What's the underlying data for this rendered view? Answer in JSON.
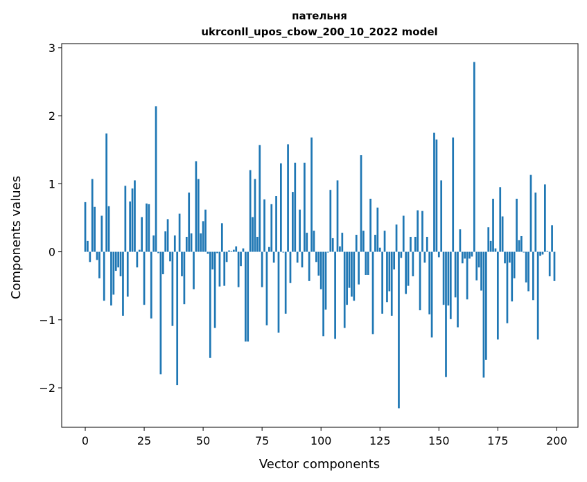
{
  "chart_data": {
    "type": "bar",
    "title": "пательня",
    "subtitle": "ukrconll_upos_cbow_200_10_2022 model",
    "xlabel": "Vector components",
    "ylabel": "Components values",
    "xlim": [
      -10,
      209
    ],
    "ylim": [
      -2.58,
      3.06
    ],
    "xticks": [
      0,
      25,
      50,
      75,
      100,
      125,
      150,
      175,
      200
    ],
    "xtick_labels": [
      "0",
      "25",
      "50",
      "75",
      "100",
      "125",
      "150",
      "175",
      "200"
    ],
    "yticks": [
      -2,
      -1,
      0,
      1,
      2,
      3
    ],
    "ytick_labels": [
      "−2",
      "−1",
      "0",
      "1",
      "2",
      "3"
    ],
    "bar_color": "#1f77b4",
    "grid": false,
    "legend": "none",
    "x": [
      0,
      1,
      2,
      3,
      4,
      5,
      6,
      7,
      8,
      9,
      10,
      11,
      12,
      13,
      14,
      15,
      16,
      17,
      18,
      19,
      20,
      21,
      22,
      23,
      24,
      25,
      26,
      27,
      28,
      29,
      30,
      31,
      32,
      33,
      34,
      35,
      36,
      37,
      38,
      39,
      40,
      41,
      42,
      43,
      44,
      45,
      46,
      47,
      48,
      49,
      50,
      51,
      52,
      53,
      54,
      55,
      56,
      57,
      58,
      59,
      60,
      61,
      62,
      63,
      64,
      65,
      66,
      67,
      68,
      69,
      70,
      71,
      72,
      73,
      74,
      75,
      76,
      77,
      78,
      79,
      80,
      81,
      82,
      83,
      84,
      85,
      86,
      87,
      88,
      89,
      90,
      91,
      92,
      93,
      94,
      95,
      96,
      97,
      98,
      99,
      100,
      101,
      102,
      103,
      104,
      105,
      106,
      107,
      108,
      109,
      110,
      111,
      112,
      113,
      114,
      115,
      116,
      117,
      118,
      119,
      120,
      121,
      122,
      123,
      124,
      125,
      126,
      127,
      128,
      129,
      130,
      131,
      132,
      133,
      134,
      135,
      136,
      137,
      138,
      139,
      140,
      141,
      142,
      143,
      144,
      145,
      146,
      147,
      148,
      149,
      150,
      151,
      152,
      153,
      154,
      155,
      156,
      157,
      158,
      159,
      160,
      161,
      162,
      163,
      164,
      165,
      166,
      167,
      168,
      169,
      170,
      171,
      172,
      173,
      174,
      175,
      176,
      177,
      178,
      179,
      180,
      181,
      182,
      183,
      184,
      185,
      186,
      187,
      188,
      189,
      190,
      191,
      192,
      193,
      194,
      195,
      196,
      197,
      198,
      199
    ],
    "values": [
      0.73,
      0.16,
      -0.15,
      1.07,
      0.66,
      -0.12,
      -0.39,
      0.53,
      -0.72,
      1.74,
      0.67,
      -0.79,
      -0.63,
      -0.28,
      -0.23,
      -0.36,
      -0.94,
      0.97,
      -0.66,
      0.74,
      0.93,
      1.05,
      -0.23,
      0.03,
      0.51,
      -0.78,
      0.71,
      0.7,
      -0.98,
      0.24,
      2.14,
      -0.02,
      -1.8,
      -0.33,
      0.3,
      0.48,
      -0.14,
      -1.09,
      0.24,
      -1.96,
      0.56,
      -0.36,
      -0.77,
      0.22,
      0.87,
      0.27,
      -0.55,
      1.33,
      1.07,
      0.27,
      0.45,
      0.62,
      -0.03,
      -1.56,
      -0.26,
      -1.12,
      -0.02,
      -0.51,
      0.42,
      -0.5,
      -0.15,
      0.02,
      0.01,
      0.03,
      0.08,
      -0.52,
      -0.21,
      0.05,
      -1.32,
      -1.32,
      1.2,
      0.51,
      1.07,
      0.22,
      1.57,
      -0.52,
      0.77,
      -1.08,
      0.07,
      0.7,
      -0.16,
      0.82,
      -1.19,
      1.3,
      -0.01,
      -0.91,
      1.58,
      -0.46,
      0.88,
      1.31,
      -0.16,
      0.62,
      -0.23,
      1.31,
      0.28,
      -0.43,
      1.68,
      0.31,
      -0.15,
      -0.35,
      -0.55,
      -1.24,
      -0.85,
      -0.01,
      0.91,
      0.2,
      -1.28,
      1.05,
      0.08,
      0.28,
      -1.12,
      -0.78,
      -0.53,
      -0.66,
      -0.72,
      0.25,
      -0.48,
      1.42,
      0.31,
      -0.34,
      -0.34,
      0.78,
      -1.21,
      0.25,
      0.65,
      0.06,
      -0.91,
      0.31,
      -0.74,
      -0.58,
      -0.94,
      -0.26,
      0.4,
      -2.3,
      -0.09,
      0.53,
      -0.62,
      -0.5,
      0.22,
      -0.36,
      0.22,
      0.61,
      -0.86,
      0.6,
      -0.16,
      0.22,
      -0.92,
      -1.26,
      1.75,
      1.65,
      -0.08,
      1.05,
      -0.78,
      -1.84,
      -0.79,
      -0.99,
      1.68,
      -0.67,
      -1.11,
      0.33,
      -0.17,
      -0.1,
      -0.7,
      -0.1,
      -0.07,
      2.79,
      -0.42,
      -0.23,
      -0.57,
      -1.85,
      -1.59,
      0.36,
      0.16,
      0.78,
      0.05,
      -1.29,
      0.95,
      0.52,
      -0.17,
      -1.05,
      -0.16,
      -0.73,
      -0.39,
      0.78,
      0.17,
      0.23,
      -0.01,
      -0.45,
      -0.58,
      1.13,
      -0.71,
      0.87,
      -1.29,
      -0.06,
      -0.04,
      0.99,
      0.01,
      -0.36,
      0.39,
      -0.43
    ]
  }
}
